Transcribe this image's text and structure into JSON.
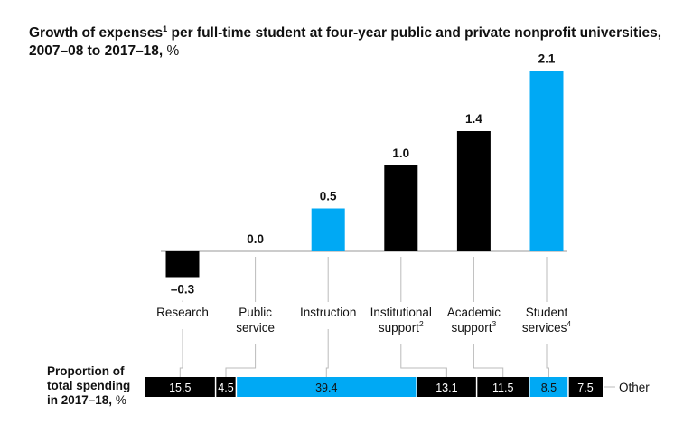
{
  "title": {
    "text_pre": "Growth of expenses",
    "sup": "1",
    "text_post": " per full-time student at four-year public and private nonprofit universities, 2007–08 to 2017–18,",
    "unit": " %"
  },
  "colors": {
    "black": "#000000",
    "blue": "#00A9F4",
    "axis": "#bbbbbb"
  },
  "chart_data": {
    "type": "bar",
    "categories": [
      "Research",
      "Public service",
      "Instruction",
      "Institutional support",
      "Academic support",
      "Student services"
    ],
    "values": [
      -0.3,
      0.0,
      0.5,
      1.0,
      1.4,
      2.1
    ],
    "value_labels": [
      "–0.3",
      "0.0",
      "0.5",
      "1.0",
      "1.4",
      "2.1"
    ],
    "category_labels": [
      {
        "lines": [
          "Research"
        ],
        "sup": ""
      },
      {
        "lines": [
          "Public",
          "service"
        ],
        "sup": ""
      },
      {
        "lines": [
          "Instruction"
        ],
        "sup": ""
      },
      {
        "lines": [
          "Institutional",
          "support"
        ],
        "sup": "2"
      },
      {
        "lines": [
          "Academic",
          "support"
        ],
        "sup": "3"
      },
      {
        "lines": [
          "Student",
          "services"
        ],
        "sup": "4"
      }
    ],
    "bar_colors": [
      "black",
      "black",
      "blue",
      "black",
      "black",
      "blue"
    ],
    "ylim": [
      -0.3,
      2.1
    ],
    "proportion": {
      "label_lines": [
        "Proportion of",
        "total spending",
        "in 2017–18,"
      ],
      "label_unit": " %",
      "segments": [
        {
          "category": "Research",
          "value": 15.5,
          "label": "15.5",
          "color": "black"
        },
        {
          "category": "Public service",
          "value": 4.5,
          "label": "4.5",
          "color": "black"
        },
        {
          "category": "Instruction",
          "value": 39.4,
          "label": "39.4",
          "color": "blue"
        },
        {
          "category": "Institutional support",
          "value": 13.1,
          "label": "13.1",
          "color": "black"
        },
        {
          "category": "Academic support",
          "value": 11.5,
          "label": "11.5",
          "color": "black"
        },
        {
          "category": "Student services",
          "value": 8.5,
          "label": "8.5",
          "color": "blue"
        },
        {
          "category": "Other",
          "value": 7.5,
          "label": "7.5",
          "color": "black"
        }
      ],
      "other_label": "Other"
    }
  }
}
